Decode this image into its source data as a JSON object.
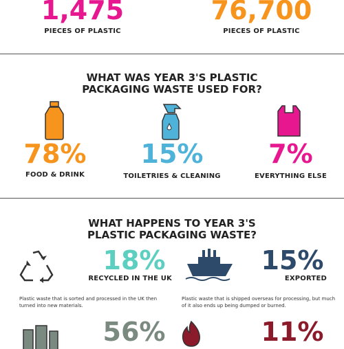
{
  "top_stats": [
    {
      "value": "1,475",
      "label": "PIECES OF PLASTIC"
    },
    {
      "value": "76,700",
      "label": "PIECES OF PLASTIC"
    }
  ],
  "usage": {
    "title_lines": [
      "WHAT WAS YEAR 3'S PLASTIC",
      "PACKAGING WASTE USED FOR?"
    ],
    "items": [
      {
        "value": "78%",
        "label": "FOOD & DRINK"
      },
      {
        "value": "15%",
        "label": "TOILETRIES & CLEANING"
      },
      {
        "value": "7%",
        "label": "EVERYTHING ELSE"
      }
    ]
  },
  "fate": {
    "title_lines": [
      "WHAT HAPPENS TO YEAR 3'S",
      "PLASTIC PACKAGING WASTE?"
    ],
    "items": [
      {
        "value": "18%",
        "label": "RECYCLED IN THE UK",
        "description": "Plastic waste that is sorted and processed in the UK then turned into new materials."
      },
      {
        "value": "15%",
        "label": "EXPORTED",
        "description": "Plastic waste that is shipped overseas for processing, but much of it also ends up being dumped or burned."
      },
      {
        "value": "56%"
      },
      {
        "value": "11%"
      }
    ]
  }
}
